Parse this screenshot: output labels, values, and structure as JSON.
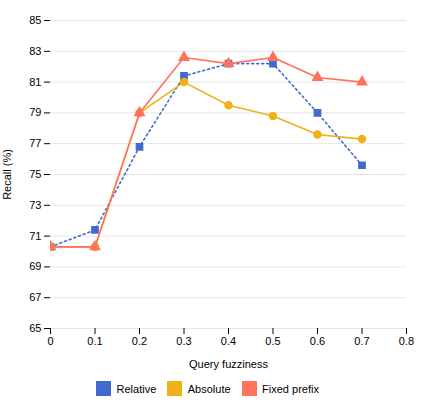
{
  "chart_data": {
    "type": "line",
    "x": [
      0,
      0.1,
      0.2,
      0.3,
      0.4,
      0.5,
      0.6,
      0.7
    ],
    "series": [
      {
        "name": "Relative",
        "values": [
          70.3,
          71.4,
          76.8,
          81.4,
          82.2,
          82.2,
          79.0,
          75.6
        ],
        "marker": "square",
        "line_style": "dotted"
      },
      {
        "name": "Absolute",
        "values": [
          70.3,
          70.3,
          79.0,
          81.0,
          79.5,
          78.8,
          77.6,
          77.3
        ],
        "marker": "circle",
        "line_style": "solid"
      },
      {
        "name": "Fixed prefix",
        "values": [
          70.3,
          70.3,
          79.0,
          82.6,
          82.2,
          82.6,
          81.3,
          81.0
        ],
        "marker": "triangle",
        "line_style": "solid"
      }
    ],
    "xlabel": "Query fuzziness",
    "ylabel": "Recall (%)",
    "xlim": [
      0,
      0.8
    ],
    "ylim": [
      65,
      85
    ],
    "xticks": [
      0,
      0.1,
      0.2,
      0.3,
      0.4,
      0.5,
      0.6,
      0.7,
      0.8
    ],
    "yticks": [
      65,
      67,
      69,
      71,
      73,
      75,
      77,
      79,
      81,
      83,
      85
    ],
    "grid": "y",
    "legend": "bottom"
  }
}
